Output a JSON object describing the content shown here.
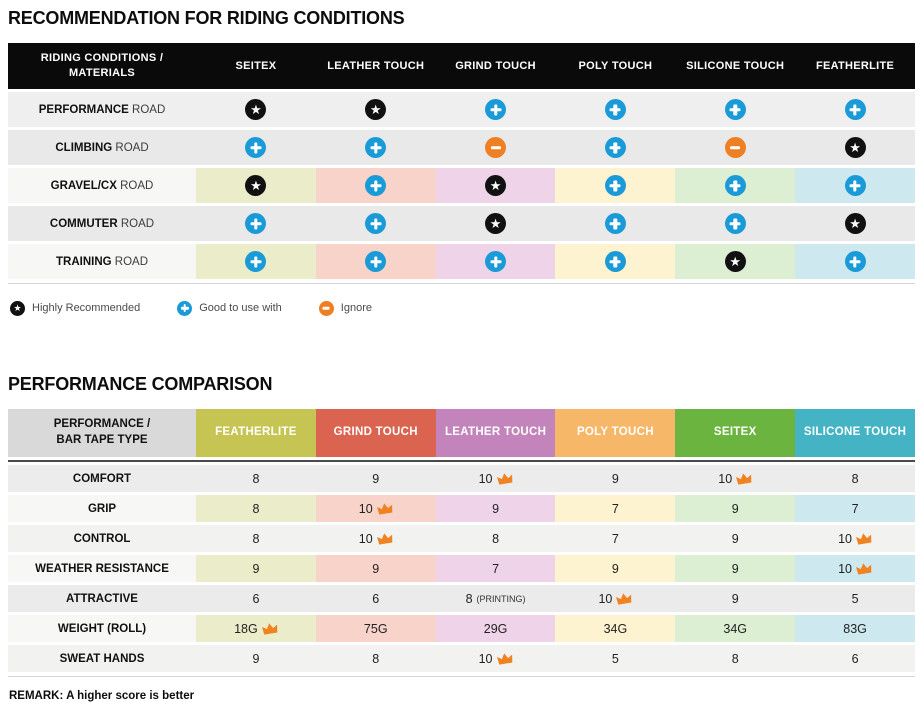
{
  "table1": {
    "title": "RECOMMENDATION FOR RIDING CONDITIONS",
    "corner_header_line1": "RIDING CONDITIONS /",
    "corner_header_line2": "MATERIALS",
    "columns": [
      "SEITEX",
      "LEATHER TOUCH",
      "GRIND TOUCH",
      "POLY TOUCH",
      "SILICONE TOUCH",
      "FEATHERLITE"
    ],
    "column_tints": [
      "#ebecca",
      "#f8d3c9",
      "#eed3e9",
      "#fdf3d0",
      "#dcefd3",
      "#cde9ef"
    ],
    "rows": [
      {
        "label_bold": "PERFORMANCE",
        "label_rest": "ROAD",
        "bg": "#efefef",
        "tinted": false,
        "cells": [
          "star",
          "star",
          "plus",
          "plus",
          "plus",
          "plus"
        ]
      },
      {
        "label_bold": "CLIMBING",
        "label_rest": "ROAD",
        "bg": "#e9e9e9",
        "tinted": false,
        "cells": [
          "plus",
          "plus",
          "minus",
          "plus",
          "minus",
          "star"
        ]
      },
      {
        "label_bold": "GRAVEL/CX",
        "label_rest": "ROAD",
        "bg": "#f7f7f5",
        "tinted": true,
        "cells": [
          "star",
          "plus",
          "star",
          "plus",
          "plus",
          "plus"
        ]
      },
      {
        "label_bold": "COMMUTER",
        "label_rest": "ROAD",
        "bg": "#e9e9e9",
        "tinted": false,
        "cells": [
          "plus",
          "plus",
          "star",
          "plus",
          "plus",
          "star"
        ]
      },
      {
        "label_bold": "TRAINING",
        "label_rest": "ROAD",
        "bg": "#f7f7f5",
        "tinted": true,
        "cells": [
          "plus",
          "plus",
          "plus",
          "plus",
          "star",
          "plus"
        ]
      }
    ]
  },
  "legend": {
    "items": [
      {
        "icon": "star",
        "label": "Highly Recommended"
      },
      {
        "icon": "plus",
        "label": "Good to use with"
      },
      {
        "icon": "minus",
        "label": "Ignore"
      }
    ]
  },
  "table2": {
    "title": "PERFORMANCE COMPARISON",
    "corner_header_line1": "PERFORMANCE /",
    "corner_header_line2": "BAR TAPE TYPE",
    "corner_bg": "#d9d9d9",
    "columns": [
      {
        "name": "FEATHERLITE",
        "color": "#c6c553",
        "tint": "#ebecca"
      },
      {
        "name": "GRIND TOUCH",
        "color": "#db6450",
        "tint": "#f8d3c9"
      },
      {
        "name": "LEATHER TOUCH",
        "color": "#c284ba",
        "tint": "#eed3e9"
      },
      {
        "name": "POLY TOUCH",
        "color": "#f6b768",
        "tint": "#fdf3d0"
      },
      {
        "name": "SEITEX",
        "color": "#6cb440",
        "tint": "#dcefd3"
      },
      {
        "name": "SILICONE TOUCH",
        "color": "#44b4c5",
        "tint": "#cde9ef"
      }
    ],
    "rows": [
      {
        "label": "COMFORT",
        "bg": "#ececec",
        "tinted": false,
        "cells": [
          {
            "v": "8"
          },
          {
            "v": "9"
          },
          {
            "v": "10",
            "crown": true
          },
          {
            "v": "9"
          },
          {
            "v": "10",
            "crown": true
          },
          {
            "v": "8"
          }
        ]
      },
      {
        "label": "GRIP",
        "bg": "#f7f7f5",
        "tinted": true,
        "cells": [
          {
            "v": "8"
          },
          {
            "v": "10",
            "crown": true
          },
          {
            "v": "9"
          },
          {
            "v": "7"
          },
          {
            "v": "9"
          },
          {
            "v": "7"
          }
        ]
      },
      {
        "label": "CONTROL",
        "bg": "#f2f2f0",
        "tinted": false,
        "cells": [
          {
            "v": "8"
          },
          {
            "v": "10",
            "crown": true
          },
          {
            "v": "8"
          },
          {
            "v": "7"
          },
          {
            "v": "9"
          },
          {
            "v": "10",
            "crown": true
          }
        ]
      },
      {
        "label": "WEATHER RESISTANCE",
        "bg": "#f7f7f5",
        "tinted": true,
        "cells": [
          {
            "v": "9"
          },
          {
            "v": "9"
          },
          {
            "v": "7"
          },
          {
            "v": "9"
          },
          {
            "v": "9"
          },
          {
            "v": "10",
            "crown": true
          }
        ]
      },
      {
        "label": "ATTRACTIVE",
        "bg": "#ebebeb",
        "tinted": false,
        "cells": [
          {
            "v": "6"
          },
          {
            "v": "6"
          },
          {
            "v": "8",
            "note": "(PRINTING)"
          },
          {
            "v": "10",
            "crown": true
          },
          {
            "v": "9"
          },
          {
            "v": "5"
          }
        ]
      },
      {
        "label": "WEIGHT (ROLL)",
        "bg": "#f7f7f5",
        "tinted": true,
        "cells": [
          {
            "v": "18G",
            "crown": true
          },
          {
            "v": "75G"
          },
          {
            "v": "29G"
          },
          {
            "v": "34G"
          },
          {
            "v": "34G"
          },
          {
            "v": "83G"
          }
        ]
      },
      {
        "label": "SWEAT HANDS",
        "bg": "#f2f2f0",
        "tinted": false,
        "cells": [
          {
            "v": "9"
          },
          {
            "v": "8"
          },
          {
            "v": "10",
            "crown": true
          },
          {
            "v": "5"
          },
          {
            "v": "8"
          },
          {
            "v": "6"
          }
        ]
      }
    ],
    "remark": "REMARK: A higher score is better"
  },
  "icon_colors": {
    "star_bg": "#111111",
    "plus_bg": "#1a9bd7",
    "minus_bg": "#ee7f22",
    "crown": "#f08222",
    "header_bg": "#0a0a0a"
  },
  "chart_data": [
    {
      "type": "table",
      "title": "RECOMMENDATION FOR RIDING CONDITIONS",
      "row_header": "RIDING CONDITIONS / MATERIALS",
      "columns": [
        "SEITEX",
        "LEATHER TOUCH",
        "GRIND TOUCH",
        "POLY TOUCH",
        "SILICONE TOUCH",
        "FEATHERLITE"
      ],
      "rows": [
        [
          "PERFORMANCE ROAD",
          "highly_recommended",
          "highly_recommended",
          "good_to_use_with",
          "good_to_use_with",
          "good_to_use_with",
          "good_to_use_with"
        ],
        [
          "CLIMBING ROAD",
          "good_to_use_with",
          "good_to_use_with",
          "ignore",
          "good_to_use_with",
          "ignore",
          "highly_recommended"
        ],
        [
          "GRAVEL/CX ROAD",
          "highly_recommended",
          "good_to_use_with",
          "highly_recommended",
          "good_to_use_with",
          "good_to_use_with",
          "good_to_use_with"
        ],
        [
          "COMMUTER ROAD",
          "good_to_use_with",
          "good_to_use_with",
          "highly_recommended",
          "good_to_use_with",
          "good_to_use_with",
          "highly_recommended"
        ],
        [
          "TRAINING ROAD",
          "good_to_use_with",
          "good_to_use_with",
          "good_to_use_with",
          "good_to_use_with",
          "highly_recommended",
          "good_to_use_with"
        ]
      ],
      "legend": [
        "Highly Recommended",
        "Good to use with",
        "Ignore"
      ]
    },
    {
      "type": "table",
      "title": "PERFORMANCE COMPARISON",
      "row_header": "PERFORMANCE / BAR TAPE TYPE",
      "columns": [
        "FEATHERLITE",
        "GRIND TOUCH",
        "LEATHER TOUCH",
        "POLY TOUCH",
        "SEITEX",
        "SILICONE TOUCH"
      ],
      "rows": [
        [
          "COMFORT",
          "8",
          "9",
          "10 (best)",
          "9",
          "10 (best)",
          "8"
        ],
        [
          "GRIP",
          "8",
          "10 (best)",
          "9",
          "7",
          "9",
          "7"
        ],
        [
          "CONTROL",
          "8",
          "10 (best)",
          "8",
          "7",
          "9",
          "10 (best)"
        ],
        [
          "WEATHER RESISTANCE",
          "9",
          "9",
          "7",
          "9",
          "9",
          "10 (best)"
        ],
        [
          "ATTRACTIVE",
          "6",
          "6",
          "8 (PRINTING)",
          "10 (best)",
          "9",
          "5"
        ],
        [
          "WEIGHT (ROLL)",
          "18G (best)",
          "75G",
          "29G",
          "34G",
          "34G",
          "83G"
        ],
        [
          "SWEAT HANDS",
          "9",
          "8",
          "10 (best)",
          "5",
          "8",
          "6"
        ]
      ],
      "note": "REMARK: A higher score is better"
    }
  ]
}
